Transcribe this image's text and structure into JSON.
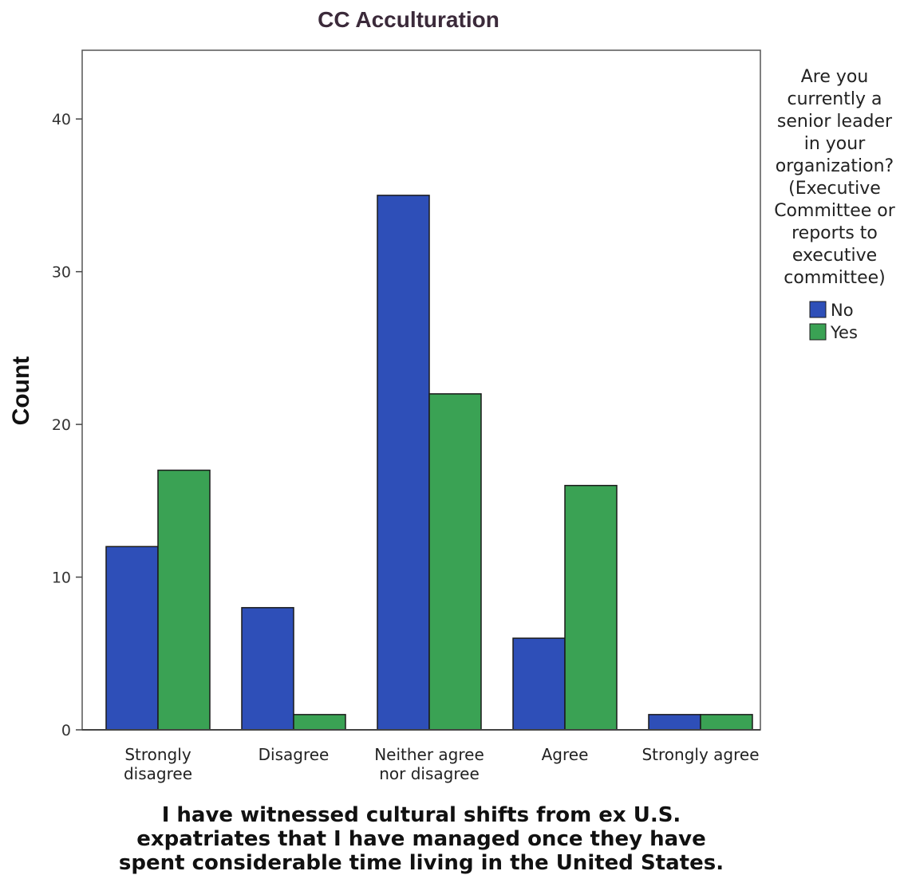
{
  "chart_data": {
    "type": "bar",
    "title": "CC Acculturation",
    "ylabel": "Count",
    "xlabel": [
      "I have witnessed cultural shifts from ex U.S.",
      "expatriates that I have managed once they have",
      "spent considerable time living in the United States."
    ],
    "categories": [
      [
        "Strongly",
        "disagree"
      ],
      [
        "Disagree"
      ],
      [
        "Neither agree",
        "nor disagree"
      ],
      [
        "Agree"
      ],
      [
        "Strongly agree"
      ]
    ],
    "series": [
      {
        "name": "No",
        "color": "#2e4fb8",
        "values": [
          12,
          8,
          35,
          6,
          1
        ]
      },
      {
        "name": "Yes",
        "color": "#3aa254",
        "values": [
          17,
          1,
          22,
          16,
          1
        ]
      }
    ],
    "ylim": [
      0,
      44.5
    ],
    "yticks": [
      0,
      10,
      20,
      30,
      40
    ],
    "grid": false,
    "legend": {
      "placement": "right",
      "title": [
        "Are you",
        "currently a",
        "senior leader",
        "in your",
        "organization?",
        "(Executive",
        "Committee or",
        "reports to",
        "executive",
        "committee)"
      ]
    }
  }
}
